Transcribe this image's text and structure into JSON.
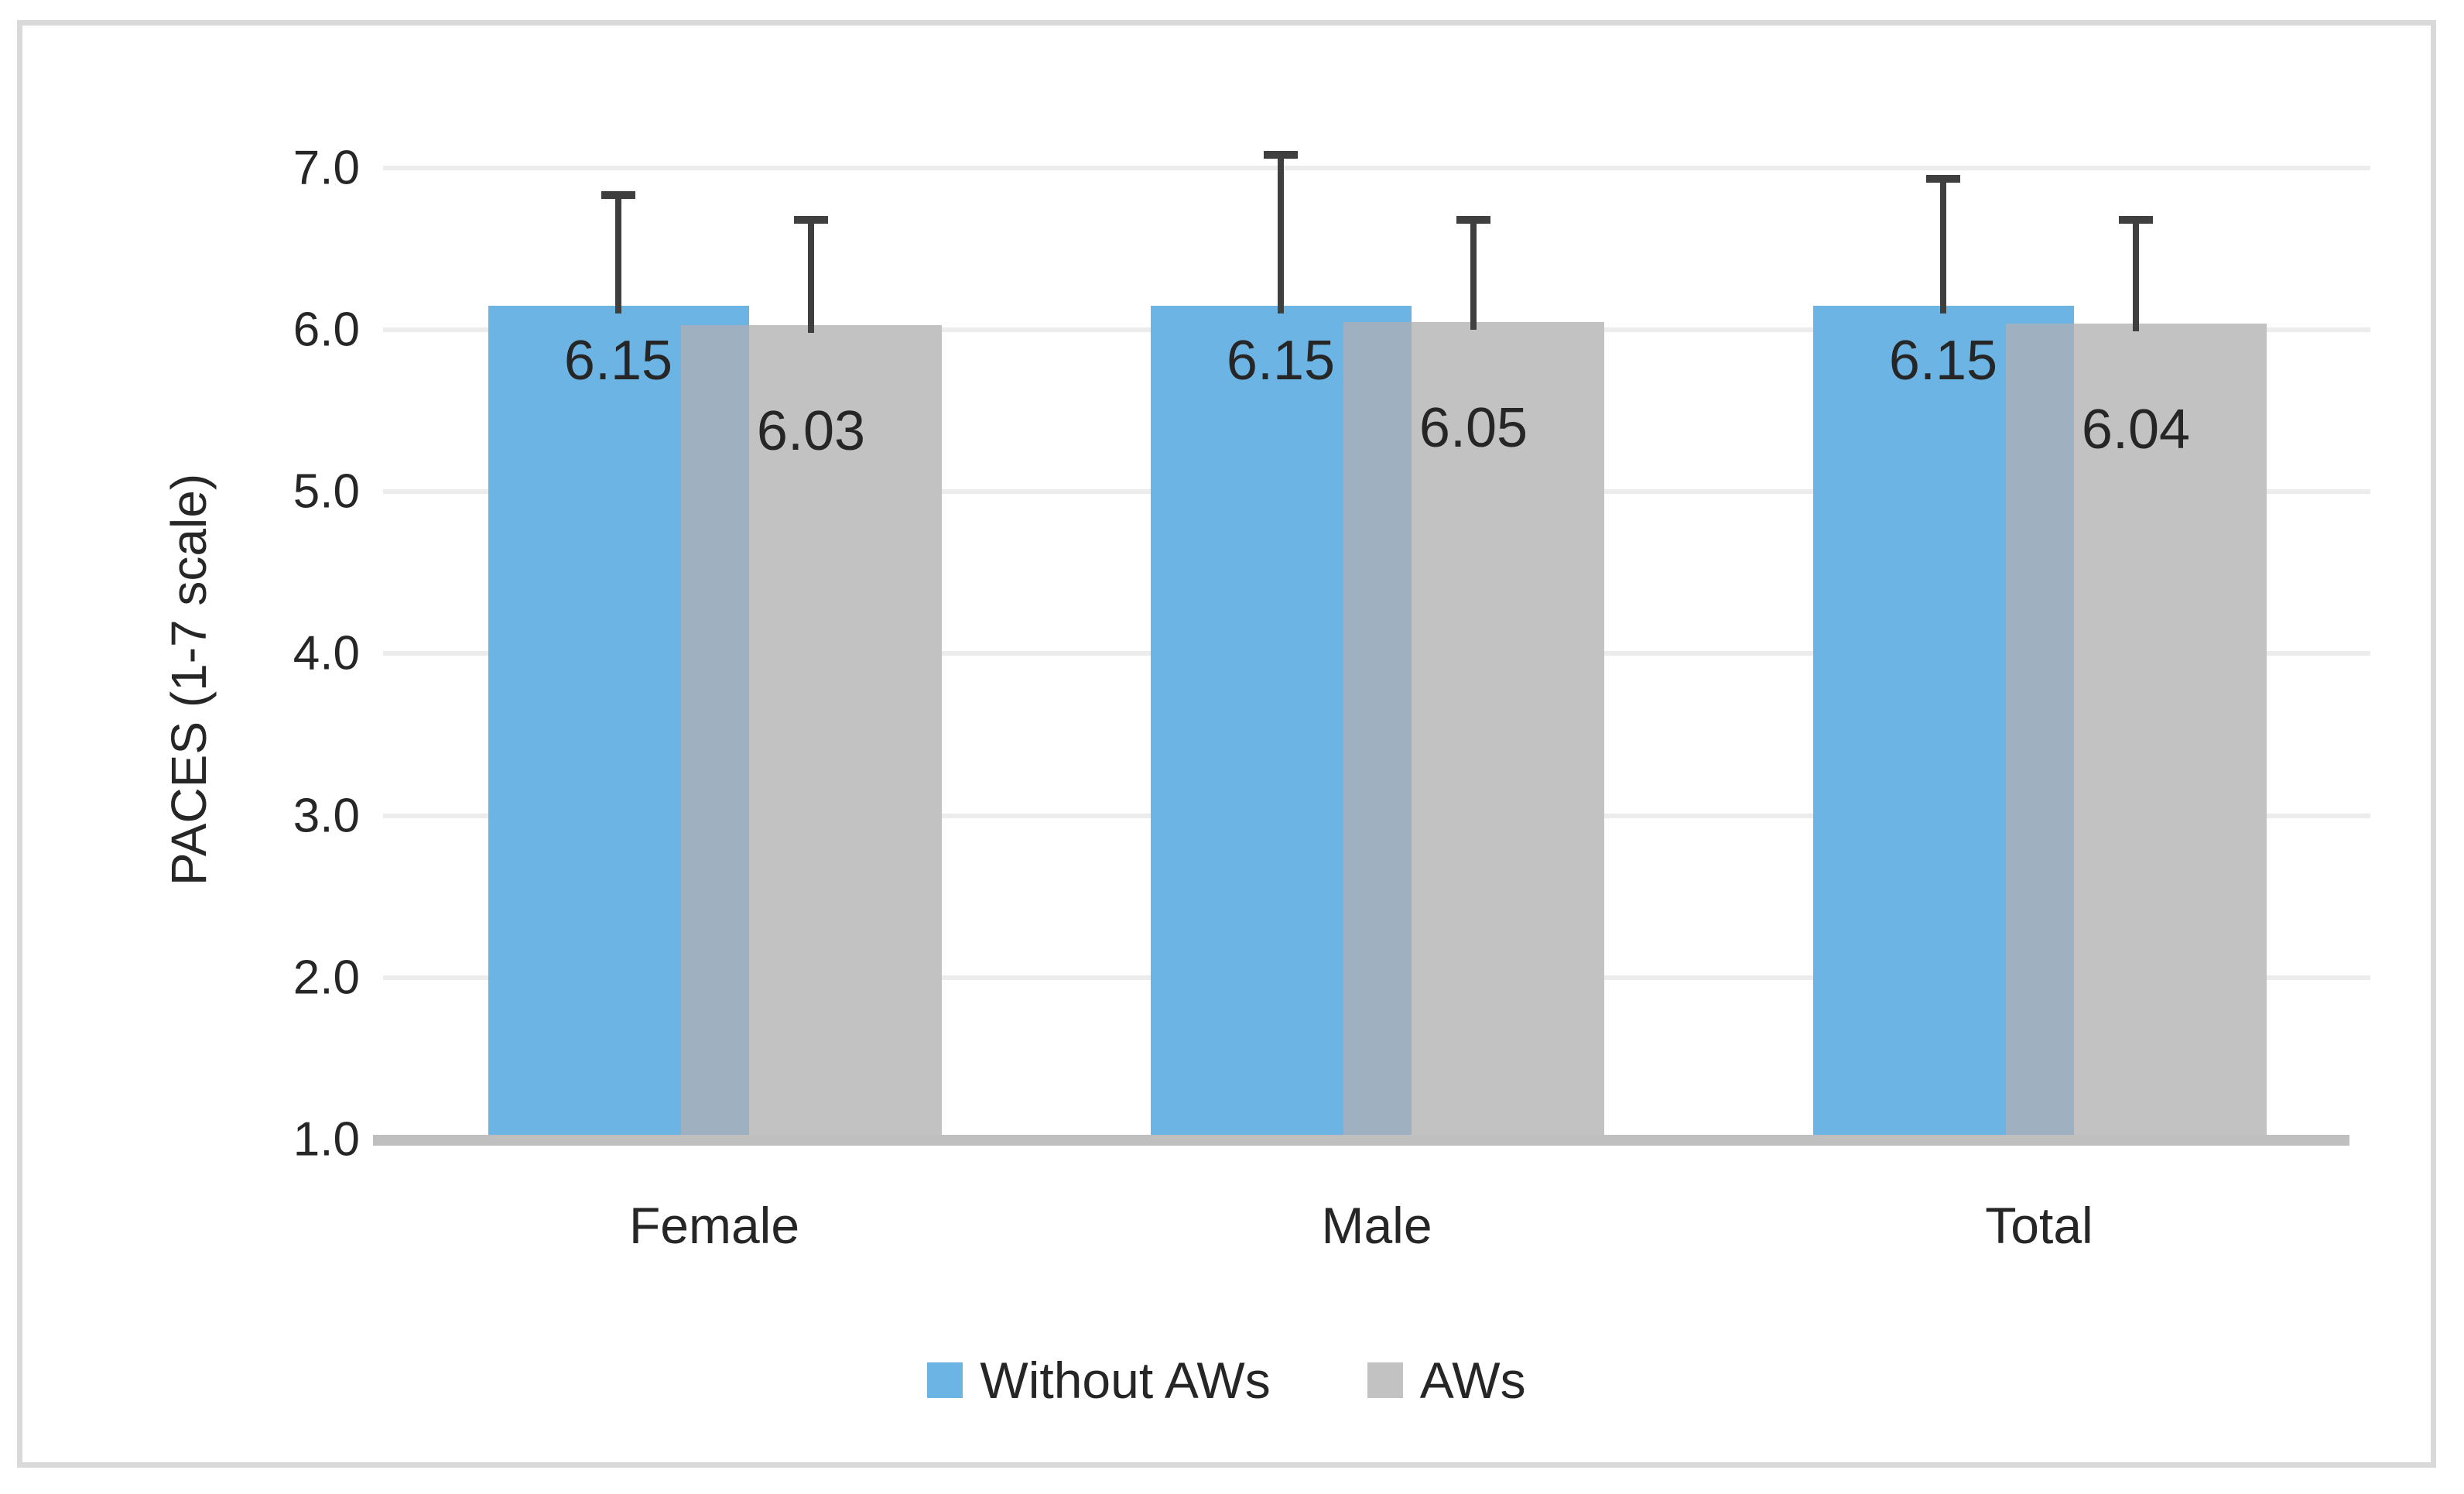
{
  "chart_data": {
    "type": "bar",
    "title": "",
    "xlabel": "",
    "ylabel": "PACES (1-7 scale)",
    "categories": [
      "Female",
      "Male",
      "Total"
    ],
    "series": [
      {
        "name": "Without AWs",
        "color": "#6CB4E4",
        "values": [
          6.15,
          6.15,
          6.15
        ],
        "labels": [
          "6.15",
          "6.15",
          "6.15"
        ],
        "error_plus": [
          0.7,
          0.95,
          0.8
        ]
      },
      {
        "name": "AWs",
        "color": "#C2C2C2",
        "values": [
          6.03,
          6.05,
          6.04
        ],
        "labels": [
          "6.03",
          "6.05",
          "6.04"
        ],
        "error_plus": [
          0.67,
          0.65,
          0.66
        ]
      }
    ],
    "overlap_color": "#9FB0C0",
    "error_bar_color": "#3F3F3F",
    "grid": true,
    "legend_position": "bottom",
    "y_axis": {
      "min": 1.0,
      "max": 7.0,
      "step": 1.0,
      "tick_labels": [
        "1.0",
        "2.0",
        "3.0",
        "4.0",
        "5.0",
        "6.0",
        "7.0"
      ]
    }
  },
  "legend": {
    "items": [
      {
        "label": "Without AWs",
        "color": "#6CB4E4"
      },
      {
        "label": "AWs",
        "color": "#C2C2C2"
      }
    ]
  },
  "colors": {
    "frame_border": "#D9D9D9",
    "gridline": "#ECECEC",
    "axis_line": "#BFBFBF",
    "text": "#262626"
  }
}
